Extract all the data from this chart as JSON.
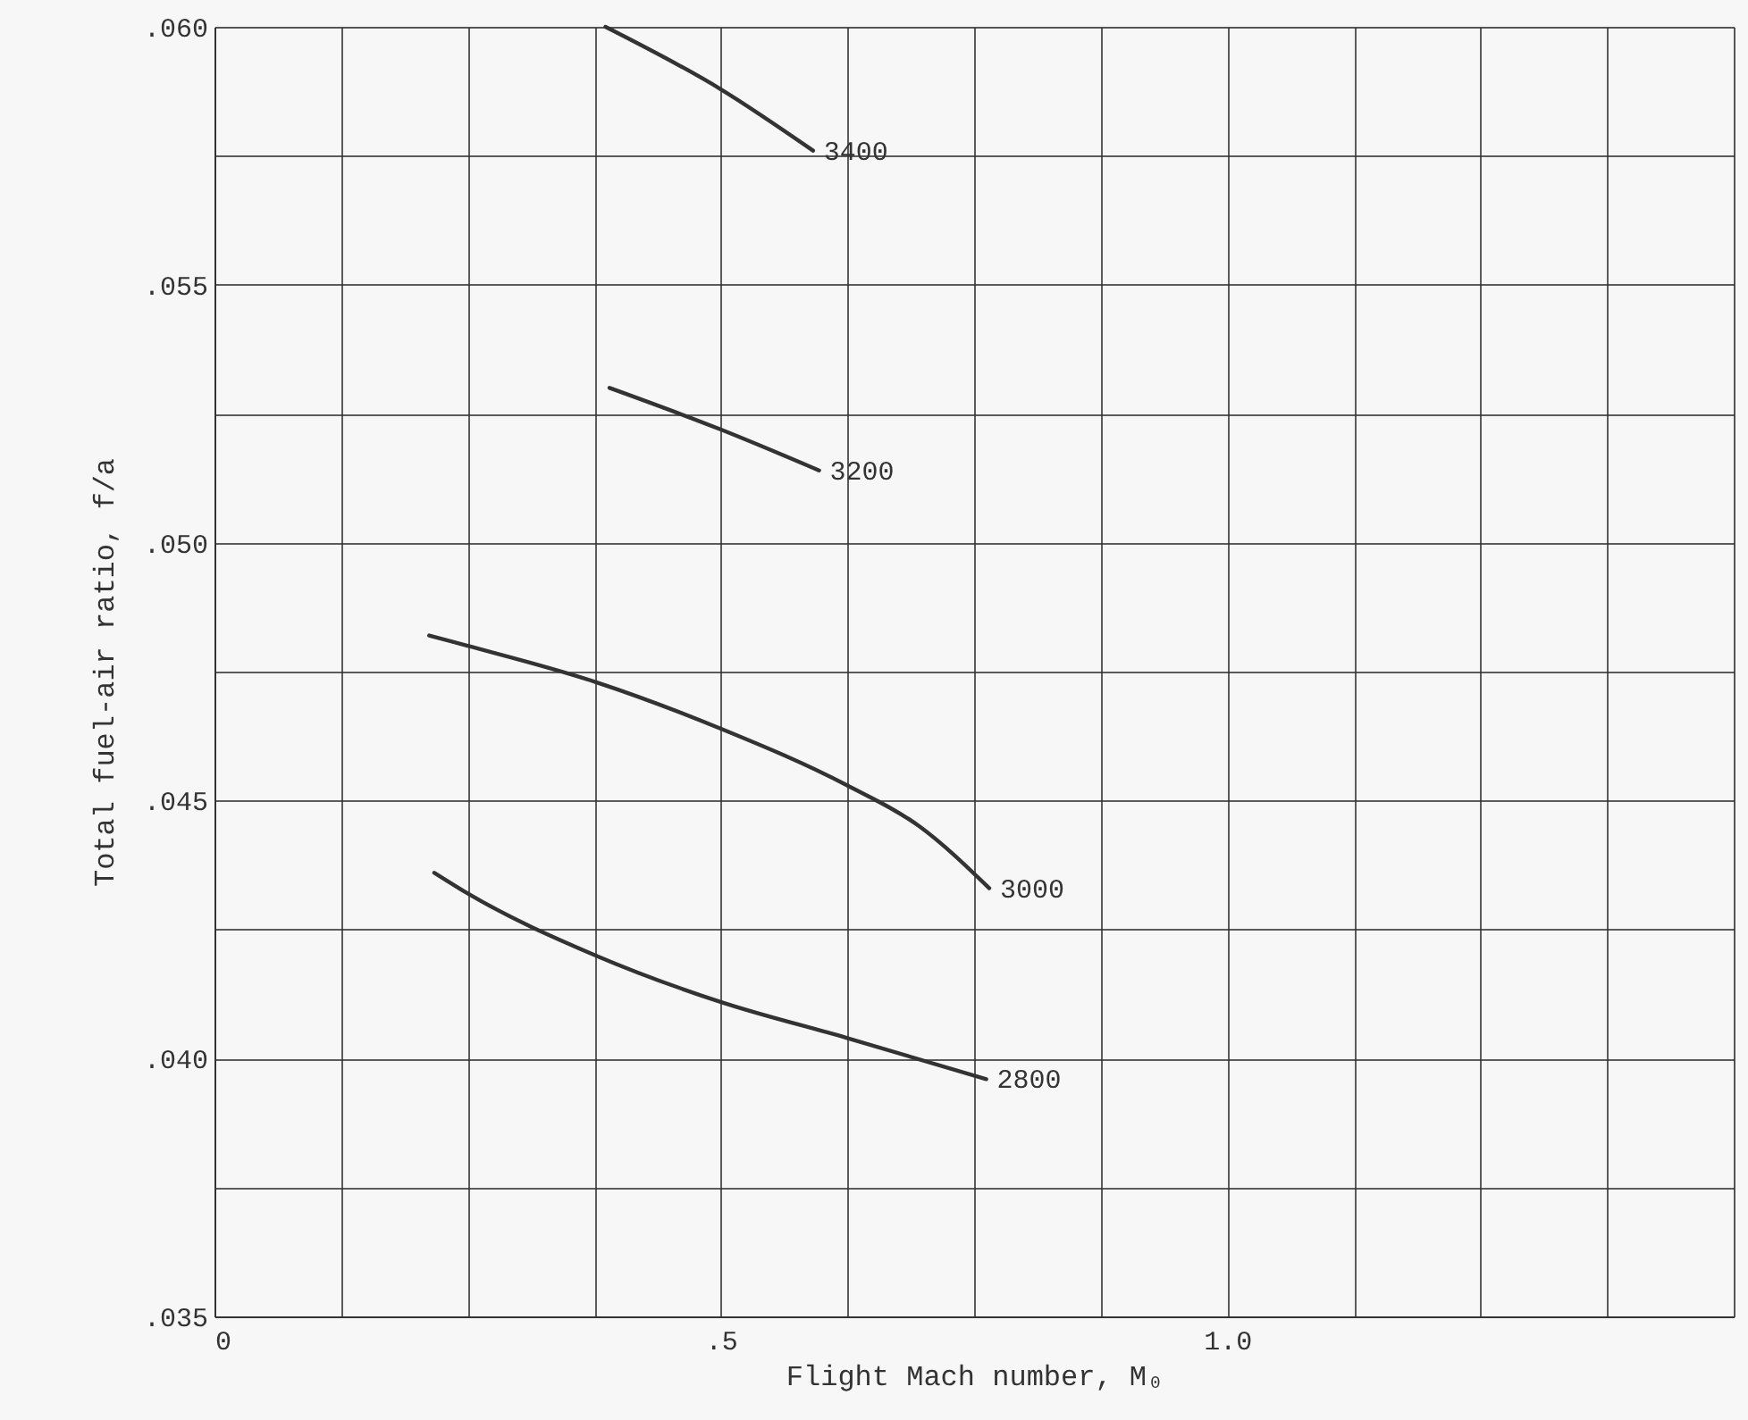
{
  "chart_data": {
    "type": "line",
    "xlabel": "Flight Mach number, M₀",
    "ylabel": "Total fuel-air ratio, f/a",
    "xlim": [
      0,
      1.5
    ],
    "ylim": [
      0.035,
      0.06
    ],
    "xticks": [
      {
        "value": 0,
        "label": "0"
      },
      {
        "value": 0.125,
        "label": null
      },
      {
        "value": 0.25,
        "label": null
      },
      {
        "value": 0.375,
        "label": null
      },
      {
        "value": 0.5,
        "label": ".5"
      },
      {
        "value": 0.625,
        "label": null
      },
      {
        "value": 0.75,
        "label": null
      },
      {
        "value": 0.875,
        "label": null
      },
      {
        "value": 1.0,
        "label": "1.0"
      },
      {
        "value": 1.125,
        "label": null
      },
      {
        "value": 1.25,
        "label": null
      },
      {
        "value": 1.375,
        "label": null
      },
      {
        "value": 1.5,
        "label": null
      }
    ],
    "yticks": [
      {
        "value": 0.035,
        "label": ".035"
      },
      {
        "value": 0.0375,
        "label": null
      },
      {
        "value": 0.04,
        "label": ".040"
      },
      {
        "value": 0.0425,
        "label": null
      },
      {
        "value": 0.045,
        "label": ".045"
      },
      {
        "value": 0.0475,
        "label": null
      },
      {
        "value": 0.05,
        "label": ".050"
      },
      {
        "value": 0.0525,
        "label": null
      },
      {
        "value": 0.055,
        "label": ".055"
      },
      {
        "value": 0.0575,
        "label": null
      },
      {
        "value": 0.06,
        "label": ".060"
      }
    ],
    "grid": true,
    "marker": "none",
    "line_style": "solid",
    "series": [
      {
        "name": "3400",
        "color": "#333333",
        "x": [
          0.386,
          0.499,
          0.591
        ],
        "values": [
          0.06,
          0.0588,
          0.0576
        ]
      },
      {
        "name": "3200",
        "color": "#333333",
        "x": [
          0.39,
          0.499,
          0.597
        ],
        "values": [
          0.053,
          0.0522,
          0.0514
        ]
      },
      {
        "name": "3000",
        "color": "#333333",
        "x": [
          0.212,
          0.25,
          0.376,
          0.499,
          0.624,
          0.696,
          0.765
        ],
        "values": [
          0.0482,
          0.048,
          0.0473,
          0.0464,
          0.0453,
          0.0445,
          0.0433
        ]
      },
      {
        "name": "2800",
        "color": "#333333",
        "x": [
          0.217,
          0.25,
          0.376,
          0.499,
          0.624,
          0.762
        ],
        "values": [
          0.0436,
          0.0432,
          0.042,
          0.0411,
          0.0404,
          0.0396
        ]
      }
    ]
  }
}
